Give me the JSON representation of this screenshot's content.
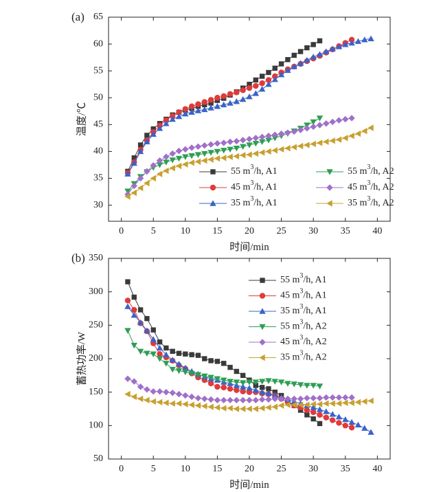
{
  "chart_data": [
    {
      "type": "line",
      "panel_label": "(a)",
      "xlabel": "时间/min",
      "ylabel": "温度/℃",
      "xlim": [
        -2,
        42
      ],
      "ylim": [
        27,
        65
      ],
      "xticks": [
        0,
        5,
        10,
        15,
        20,
        25,
        30,
        35,
        40
      ],
      "yticks": [
        30,
        35,
        40,
        45,
        50,
        55,
        60,
        65
      ],
      "grid": false,
      "legend_position": "bottom-right",
      "legend_columns": 2,
      "series": [
        {
          "name": "55 m3/h, A1",
          "color": "#3a3a3a",
          "marker": "square",
          "x": [
            1,
            2,
            3,
            4,
            5,
            6,
            7,
            8,
            9,
            10,
            11,
            12,
            13,
            14,
            15,
            16,
            17,
            18,
            19,
            20,
            21,
            22,
            23,
            24,
            25,
            26,
            27,
            28,
            29,
            30,
            31
          ],
          "y": [
            36.3,
            38.8,
            41.2,
            43.0,
            44.2,
            45.2,
            46.0,
            46.8,
            47.3,
            47.7,
            48.0,
            48.4,
            48.7,
            49.0,
            49.5,
            49.9,
            50.5,
            51.1,
            51.8,
            52.5,
            53.3,
            54.0,
            54.7,
            55.5,
            56.3,
            57.1,
            57.9,
            58.6,
            59.3,
            59.9,
            60.6
          ]
        },
        {
          "name": "45 m3/h, A1",
          "color": "#e03a3a",
          "marker": "circle",
          "x": [
            1,
            2,
            3,
            4,
            5,
            6,
            7,
            8,
            9,
            10,
            11,
            12,
            13,
            14,
            15,
            16,
            17,
            18,
            19,
            20,
            21,
            22,
            23,
            24,
            25,
            26,
            27,
            28,
            29,
            30,
            31,
            32,
            33,
            34,
            35,
            36
          ],
          "y": [
            36.0,
            38.0,
            40.3,
            42.0,
            43.6,
            44.8,
            45.8,
            46.6,
            47.3,
            47.9,
            48.4,
            48.8,
            49.2,
            49.6,
            50.0,
            50.3,
            50.7,
            51.0,
            51.4,
            51.8,
            52.2,
            52.7,
            53.3,
            54.0,
            54.7,
            55.3,
            55.8,
            56.3,
            56.8,
            57.3,
            57.8,
            58.4,
            59.0,
            59.6,
            60.2,
            60.8
          ]
        },
        {
          "name": "35 m3/h, A1",
          "color": "#3a63c8",
          "marker": "triangle-up",
          "x": [
            1,
            2,
            3,
            4,
            5,
            6,
            7,
            8,
            9,
            10,
            11,
            12,
            13,
            14,
            15,
            16,
            17,
            18,
            19,
            20,
            21,
            22,
            23,
            24,
            25,
            26,
            27,
            28,
            29,
            30,
            31,
            32,
            33,
            34,
            35,
            36,
            37,
            38,
            39
          ],
          "y": [
            35.8,
            37.8,
            40.0,
            41.8,
            43.2,
            44.3,
            45.2,
            46.0,
            46.5,
            47.0,
            47.3,
            47.6,
            47.8,
            48.1,
            48.4,
            48.7,
            49.0,
            49.3,
            49.7,
            50.2,
            50.8,
            51.6,
            52.5,
            53.4,
            54.3,
            55.1,
            55.8,
            56.4,
            57.0,
            57.6,
            58.1,
            58.6,
            59.1,
            59.5,
            59.9,
            60.2,
            60.5,
            60.8,
            61.0
          ]
        },
        {
          "name": "55 m3/h, A2",
          "color": "#2e9e55",
          "marker": "triangle-down",
          "x": [
            1,
            2,
            3,
            4,
            5,
            6,
            7,
            8,
            9,
            10,
            11,
            12,
            13,
            14,
            15,
            16,
            17,
            18,
            19,
            20,
            21,
            22,
            23,
            24,
            25,
            26,
            27,
            28,
            29,
            30,
            31
          ],
          "y": [
            32.6,
            34.0,
            35.3,
            36.2,
            37.0,
            37.5,
            38.0,
            38.4,
            38.7,
            39.0,
            39.2,
            39.4,
            39.6,
            39.8,
            40.0,
            40.2,
            40.4,
            40.6,
            40.9,
            41.2,
            41.5,
            41.8,
            42.1,
            42.5,
            42.9,
            43.3,
            43.8,
            44.3,
            44.9,
            45.5,
            46.2
          ]
        },
        {
          "name": "45 m3/h, A2",
          "color": "#a070c8",
          "marker": "diamond",
          "x": [
            1,
            2,
            3,
            4,
            5,
            6,
            7,
            8,
            9,
            10,
            11,
            12,
            13,
            14,
            15,
            16,
            17,
            18,
            19,
            20,
            21,
            22,
            23,
            24,
            25,
            26,
            27,
            28,
            29,
            30,
            31,
            32,
            33,
            34,
            35,
            36
          ],
          "y": [
            32.0,
            33.6,
            35.0,
            36.3,
            37.4,
            38.3,
            39.0,
            39.6,
            40.1,
            40.4,
            40.7,
            40.9,
            41.1,
            41.3,
            41.5,
            41.6,
            41.8,
            41.9,
            42.1,
            42.3,
            42.5,
            42.7,
            42.9,
            43.1,
            43.3,
            43.5,
            43.7,
            44.0,
            44.3,
            44.6,
            44.9,
            45.2,
            45.5,
            45.8,
            46.0,
            46.2
          ]
        },
        {
          "name": "35 m3/h, A2",
          "color": "#c8a030",
          "marker": "triangle-left",
          "x": [
            1,
            2,
            3,
            4,
            5,
            6,
            7,
            8,
            9,
            10,
            11,
            12,
            13,
            14,
            15,
            16,
            17,
            18,
            19,
            20,
            21,
            22,
            23,
            24,
            25,
            26,
            27,
            28,
            29,
            30,
            31,
            32,
            33,
            34,
            35,
            36,
            37,
            38,
            39
          ],
          "y": [
            31.6,
            32.3,
            33.2,
            34.1,
            35.0,
            35.8,
            36.4,
            36.9,
            37.3,
            37.6,
            37.9,
            38.1,
            38.3,
            38.5,
            38.7,
            38.8,
            39.0,
            39.1,
            39.3,
            39.4,
            39.6,
            39.8,
            40.0,
            40.2,
            40.4,
            40.6,
            40.8,
            41.0,
            41.2,
            41.4,
            41.6,
            41.8,
            42.0,
            42.2,
            42.5,
            42.9,
            43.3,
            43.8,
            44.4
          ]
        }
      ]
    },
    {
      "type": "line",
      "panel_label": "(b)",
      "xlabel": "时间/min",
      "ylabel": "蓄热功率/W",
      "xlim": [
        -2,
        42
      ],
      "ylim": [
        50,
        350
      ],
      "xticks": [
        0,
        5,
        10,
        15,
        20,
        25,
        30,
        35,
        40
      ],
      "yticks": [
        50,
        100,
        150,
        200,
        250,
        300,
        350
      ],
      "grid": false,
      "legend_position": "top-right",
      "legend_columns": 1,
      "series": [
        {
          "name": "55 m3/h, A1",
          "color": "#3a3a3a",
          "marker": "square",
          "x": [
            1,
            2,
            3,
            4,
            5,
            6,
            7,
            8,
            9,
            10,
            11,
            12,
            13,
            14,
            15,
            16,
            17,
            18,
            19,
            20,
            21,
            22,
            23,
            24,
            25,
            26,
            27,
            28,
            29,
            30,
            31
          ],
          "y": [
            315,
            292,
            273,
            260,
            243,
            225,
            216,
            211,
            208,
            207,
            206,
            205,
            200,
            197,
            196,
            193,
            187,
            181,
            175,
            168,
            160,
            157,
            155,
            150,
            145,
            137,
            130,
            123,
            116,
            110,
            103
          ]
        },
        {
          "name": "45 m3/h, A1",
          "color": "#e03a3a",
          "marker": "circle",
          "x": [
            1,
            2,
            3,
            4,
            5,
            6,
            7,
            8,
            9,
            10,
            11,
            12,
            13,
            14,
            15,
            16,
            17,
            18,
            19,
            20,
            21,
            22,
            23,
            24,
            25,
            26,
            27,
            28,
            29,
            30,
            31,
            32,
            33,
            34,
            35,
            36
          ],
          "y": [
            287,
            273,
            253,
            241,
            223,
            207,
            202,
            197,
            190,
            185,
            178,
            172,
            168,
            163,
            158,
            157,
            155,
            153,
            151,
            150,
            150,
            148,
            147,
            145,
            140,
            135,
            130,
            127,
            123,
            120,
            116,
            112,
            108,
            104,
            100,
            97
          ]
        },
        {
          "name": "35 m3/h, A1",
          "color": "#3a63c8",
          "marker": "triangle-up",
          "x": [
            1,
            2,
            3,
            4,
            5,
            6,
            7,
            8,
            9,
            10,
            11,
            12,
            13,
            14,
            15,
            16,
            17,
            18,
            19,
            20,
            21,
            22,
            23,
            24,
            25,
            26,
            27,
            28,
            29,
            30,
            31,
            32,
            33,
            34,
            35,
            36,
            37,
            38,
            39
          ],
          "y": [
            278,
            265,
            254,
            242,
            229,
            216,
            206,
            198,
            192,
            186,
            181,
            177,
            173,
            170,
            168,
            165,
            163,
            160,
            158,
            156,
            153,
            150,
            148,
            145,
            142,
            139,
            136,
            133,
            130,
            127,
            124,
            121,
            117,
            113,
            109,
            105,
            101,
            96,
            90
          ]
        },
        {
          "name": "55 m3/h, A2",
          "color": "#2e9e55",
          "marker": "triangle-down",
          "x": [
            1,
            2,
            3,
            4,
            5,
            6,
            7,
            8,
            9,
            10,
            11,
            12,
            13,
            14,
            15,
            16,
            17,
            18,
            19,
            20,
            21,
            22,
            23,
            24,
            25,
            26,
            27,
            28,
            29,
            30,
            31
          ],
          "y": [
            242,
            220,
            211,
            208,
            207,
            200,
            193,
            184,
            182,
            180,
            178,
            176,
            174,
            172,
            170,
            168,
            166,
            165,
            164,
            165,
            165,
            166,
            167,
            166,
            165,
            163,
            162,
            161,
            160,
            160,
            159
          ]
        },
        {
          "name": "45 m3/h, A2",
          "color": "#a070c8",
          "marker": "diamond",
          "x": [
            1,
            2,
            3,
            4,
            5,
            6,
            7,
            8,
            9,
            10,
            11,
            12,
            13,
            14,
            15,
            16,
            17,
            18,
            19,
            20,
            21,
            22,
            23,
            24,
            25,
            26,
            27,
            28,
            29,
            30,
            31,
            32,
            33,
            34,
            35,
            36
          ],
          "y": [
            170,
            166,
            158,
            154,
            151,
            151,
            150,
            149,
            147,
            145,
            143,
            141,
            140,
            139,
            138,
            138,
            138,
            138,
            138,
            138,
            138,
            139,
            139,
            140,
            140,
            140,
            140,
            140,
            141,
            141,
            141,
            142,
            142,
            142,
            142,
            142
          ]
        },
        {
          "name": "35 m3/h, A2",
          "color": "#c8a030",
          "marker": "triangle-left",
          "x": [
            1,
            2,
            3,
            4,
            5,
            6,
            7,
            8,
            9,
            10,
            11,
            12,
            13,
            14,
            15,
            16,
            17,
            18,
            19,
            20,
            21,
            22,
            23,
            24,
            25,
            26,
            27,
            28,
            29,
            30,
            31,
            32,
            33,
            34,
            35,
            36,
            37,
            38,
            39
          ],
          "y": [
            147,
            143,
            140,
            138,
            136,
            135,
            134,
            133,
            133,
            132,
            131,
            130,
            129,
            128,
            127,
            126,
            126,
            125,
            125,
            125,
            125,
            126,
            127,
            128,
            130,
            131,
            131,
            131,
            131,
            132,
            132,
            133,
            133,
            133,
            134,
            134,
            135,
            136,
            137
          ]
        }
      ]
    }
  ]
}
